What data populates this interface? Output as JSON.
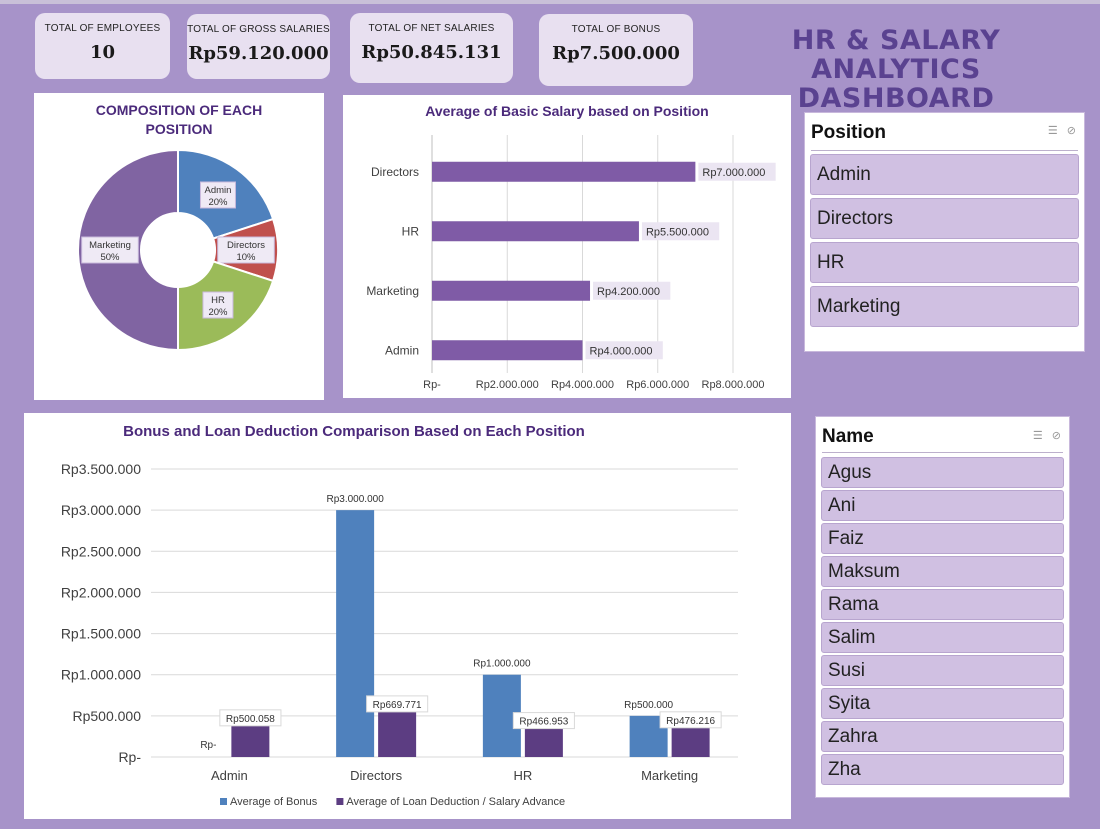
{
  "kpis": [
    {
      "label": "TOTAL OF EMPLOYEES",
      "value": "10"
    },
    {
      "label": "TOTAL OF GROSS SALARIES",
      "value": "Rp59.120.000"
    },
    {
      "label": "TOTAL OF NET SALARIES",
      "value": "Rp50.845.131"
    },
    {
      "label": "TOTAL OF BONUS",
      "value": "Rp7.500.000"
    }
  ],
  "dashboard_title": {
    "line1": "HR & SALARY ANALYTICS",
    "line2": "DASHBOARD"
  },
  "chart_data": [
    {
      "type": "pie",
      "title": "COMPOSITION OF EACH POSITION",
      "title_line1": "COMPOSITION OF EACH",
      "title_line2": "POSITION",
      "slices": [
        {
          "label": "Admin",
          "value": 20,
          "pct": "20%",
          "color": "#4f81bd"
        },
        {
          "label": "Directors",
          "value": 10,
          "pct": "10%",
          "color": "#c0504d"
        },
        {
          "label": "HR",
          "value": 20,
          "pct": "20%",
          "color": "#9bbb59"
        },
        {
          "label": "Marketing",
          "value": 50,
          "pct": "50%",
          "color": "#8064a2"
        }
      ]
    },
    {
      "type": "bar",
      "orientation": "horizontal",
      "title": "Average of Basic Salary based on Position",
      "categories": [
        "Directors",
        "HR",
        "Marketing",
        "Admin"
      ],
      "values": [
        7000000,
        5500000,
        4200000,
        4000000
      ],
      "value_labels": [
        "Rp7.000.000",
        "Rp5.500.000",
        "Rp4.200.000",
        "Rp4.000.000"
      ],
      "xlim": [
        0,
        8000000
      ],
      "x_ticks": [
        0,
        2000000,
        4000000,
        6000000,
        8000000
      ],
      "x_tick_labels": [
        "Rp-",
        "Rp2.000.000",
        "Rp4.000.000",
        "Rp6.000.000",
        "Rp8.000.000"
      ],
      "bar_color": "#7f5ba6",
      "grid": true
    },
    {
      "type": "bar",
      "title": "Bonus and Loan Deduction Comparison Based on Each Position",
      "categories": [
        "Admin",
        "Directors",
        "HR",
        "Marketing"
      ],
      "series": [
        {
          "name": "Average of Bonus",
          "values": [
            0,
            3000000,
            1000000,
            500000
          ],
          "labels": [
            "Rp-",
            "Rp3.000.000",
            "Rp1.000.000",
            "Rp500.000"
          ],
          "color": "#4f81bd"
        },
        {
          "name": "Average of Loan Deduction / Salary Advance",
          "values": [
            500058,
            669771,
            466953,
            476216
          ],
          "labels": [
            "Rp500.058",
            "Rp669.771",
            "Rp466.953",
            "Rp476.216"
          ],
          "color": "#5c3d82"
        }
      ],
      "ylim": [
        0,
        3500000
      ],
      "y_ticks": [
        0,
        500000,
        1000000,
        1500000,
        2000000,
        2500000,
        3000000,
        3500000
      ],
      "y_tick_labels": [
        "Rp-",
        "Rp500.000",
        "Rp1.000.000",
        "Rp1.500.000",
        "Rp2.000.000",
        "Rp2.500.000",
        "Rp3.000.000",
        "Rp3.500.000"
      ],
      "legend": "bottom",
      "grid": true
    }
  ],
  "slicers": {
    "position": {
      "title": "Position",
      "items": [
        "Admin",
        "Directors",
        "HR",
        "Marketing"
      ]
    },
    "name": {
      "title": "Name",
      "items": [
        "Agus",
        "Ani",
        "Faiz",
        "Maksum",
        "Rama",
        "Salim",
        "Susi",
        "Syita",
        "Zahra",
        "Zha"
      ]
    }
  },
  "icons": {
    "multi_select": "multi-select-icon",
    "clear_filter": "clear-filter-icon"
  }
}
